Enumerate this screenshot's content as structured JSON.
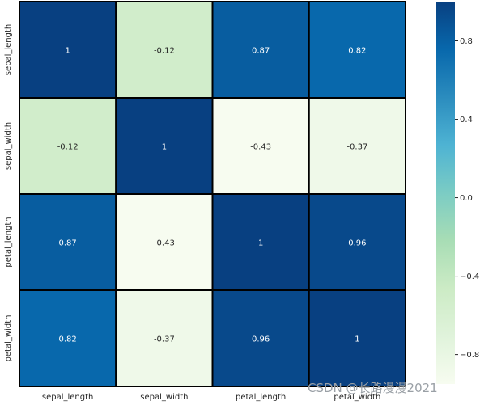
{
  "chart_data": {
    "type": "heatmap",
    "x_categories": [
      "sepal_length",
      "sepal_width",
      "petal_length",
      "petal_width"
    ],
    "y_categories": [
      "sepal_length",
      "sepal_width",
      "petal_length",
      "petal_width"
    ],
    "values": [
      [
        1,
        -0.12,
        0.87,
        0.82
      ],
      [
        -0.12,
        1,
        -0.43,
        -0.37
      ],
      [
        0.87,
        -0.43,
        1,
        0.96
      ],
      [
        0.82,
        -0.37,
        0.96,
        1
      ]
    ],
    "value_labels": [
      [
        "1",
        "-0.12",
        "0.87",
        "0.82"
      ],
      [
        "-0.12",
        "1",
        "-0.43",
        "-0.37"
      ],
      [
        "0.87",
        "-0.43",
        "1",
        "0.96"
      ],
      [
        "0.82",
        "-0.37",
        "0.96",
        "1"
      ]
    ],
    "colormap": "GnBu",
    "vmin": -0.43,
    "vmax": 1,
    "colorbar_ticks": [
      0.8,
      0.4,
      0.0,
      -0.4,
      -0.8
    ],
    "colorbar_tick_labels": [
      "0.8",
      "0.4",
      "0.0",
      "−0.4",
      "−0.8"
    ],
    "cell_border_color": "#000000"
  },
  "watermark": "CSDN @长路漫漫2021"
}
